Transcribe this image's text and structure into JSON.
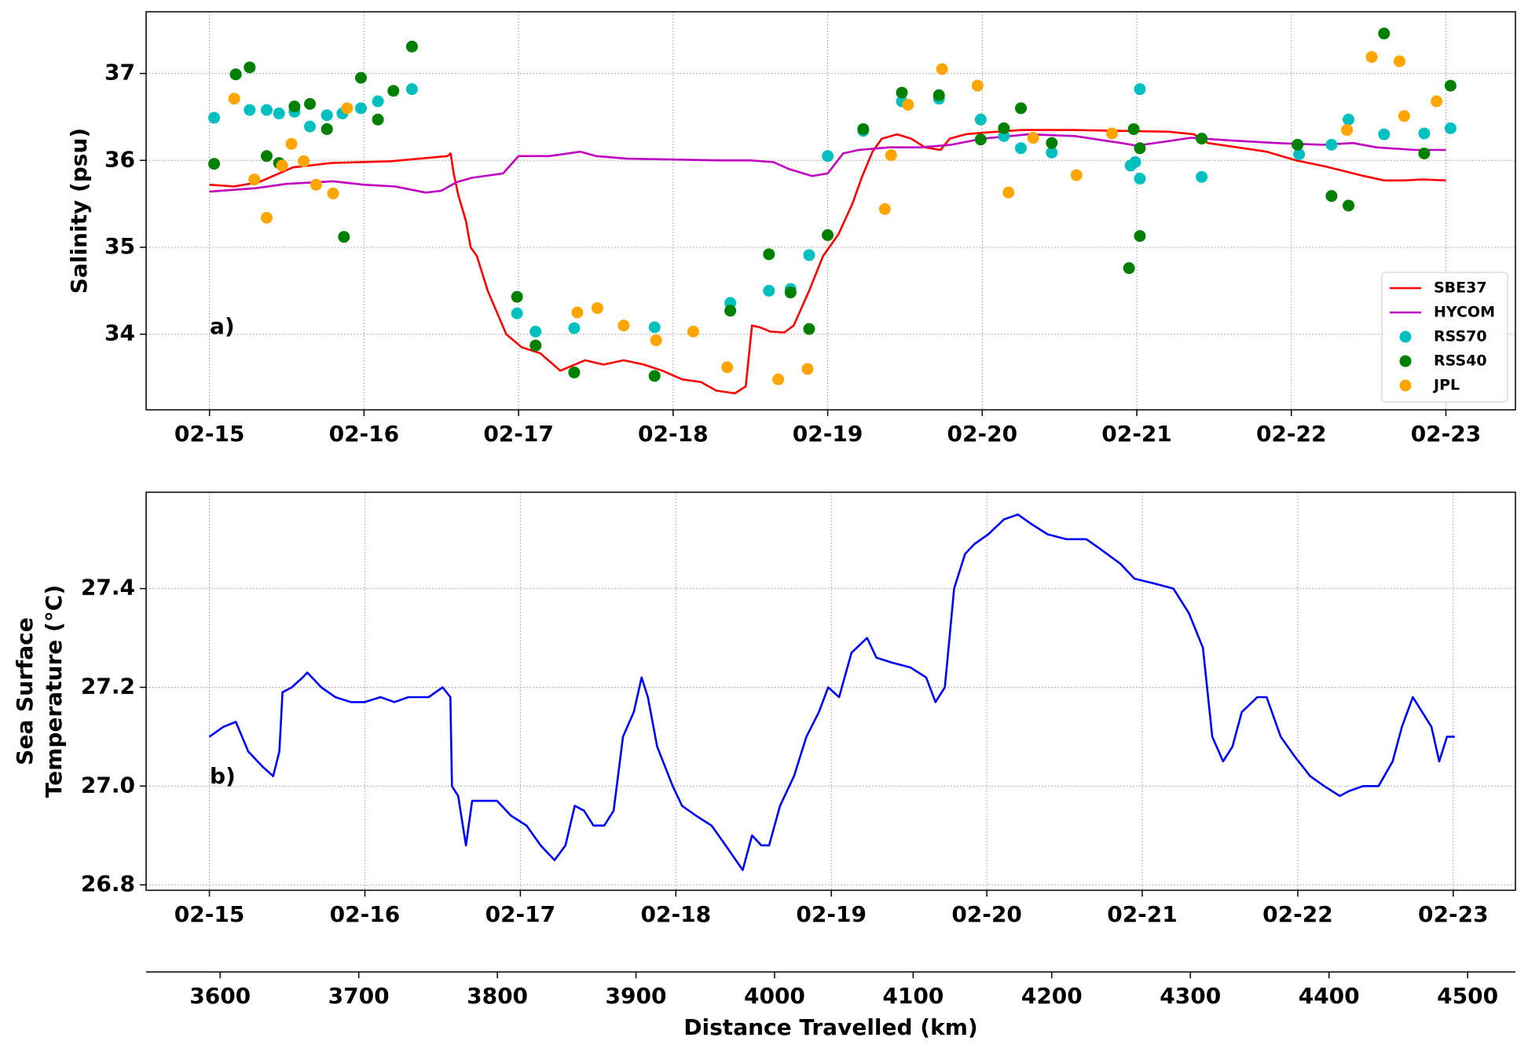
{
  "chart_data": [
    {
      "type": "line",
      "ylabel": "Salinity (psu)",
      "annotation": "a)",
      "xlim": [
        -0.41,
        8.45
      ],
      "xticks": [
        {
          "value": 0,
          "label": "02-15"
        },
        {
          "value": 1,
          "label": "02-16"
        },
        {
          "value": 2,
          "label": "02-17"
        },
        {
          "value": 3,
          "label": "02-18"
        },
        {
          "value": 4,
          "label": "02-19"
        },
        {
          "value": 5,
          "label": "02-20"
        },
        {
          "value": 6,
          "label": "02-21"
        },
        {
          "value": 7,
          "label": "02-22"
        },
        {
          "value": 8,
          "label": "02-23"
        }
      ],
      "ylim": [
        33.13,
        37.71
      ],
      "yticks": [
        34,
        35,
        36,
        37
      ],
      "grid": true,
      "legend": "lower right",
      "series": [
        {
          "name": "SBE37",
          "color": "#ff0000",
          "type": "line",
          "x": [
            0,
            0.16,
            0.32,
            0.54,
            0.79,
            1.17,
            1.36,
            1.54,
            1.56,
            1.58,
            1.61,
            1.66,
            1.69,
            1.73,
            1.8,
            1.86,
            1.92,
            2.02,
            2.14,
            2.27,
            2.43,
            2.55,
            2.68,
            2.81,
            2.93,
            3.06,
            3.18,
            3.28,
            3.4,
            3.47,
            3.51,
            3.56,
            3.63,
            3.72,
            3.78,
            3.88,
            3.97,
            4.07,
            4.16,
            4.22,
            4.29,
            4.35,
            4.45,
            4.54,
            4.63,
            4.73,
            4.79,
            4.89,
            5.01,
            5.26,
            5.58,
            5.9,
            6.21,
            6.37,
            6.46,
            6.65,
            6.84,
            7.03,
            7.22,
            7.47,
            7.6,
            7.73,
            7.85,
            8.0
          ],
          "values": [
            35.72,
            35.7,
            35.75,
            35.92,
            35.97,
            35.99,
            36.02,
            36.05,
            36.08,
            35.85,
            35.6,
            35.3,
            35.0,
            34.9,
            34.5,
            34.25,
            34.0,
            33.85,
            33.78,
            33.58,
            33.7,
            33.65,
            33.7,
            33.65,
            33.58,
            33.48,
            33.45,
            33.35,
            33.32,
            33.4,
            34.1,
            34.08,
            34.03,
            34.02,
            34.1,
            34.5,
            34.9,
            35.15,
            35.5,
            35.8,
            36.1,
            36.25,
            36.3,
            36.25,
            36.15,
            36.12,
            36.25,
            36.3,
            36.32,
            36.35,
            36.35,
            36.34,
            36.33,
            36.3,
            36.2,
            36.15,
            36.1,
            36.0,
            35.93,
            35.82,
            35.77,
            35.77,
            35.78,
            35.77
          ]
        },
        {
          "name": "HYCOM",
          "color": "#bf00bf",
          "type": "line",
          "x": [
            0,
            0.3,
            0.5,
            0.8,
            1.0,
            1.2,
            1.4,
            1.5,
            1.6,
            1.7,
            1.9,
            2.0,
            2.2,
            2.4,
            2.5,
            2.7,
            3.0,
            3.3,
            3.5,
            3.65,
            3.75,
            3.9,
            4.0,
            4.1,
            4.2,
            4.4,
            4.6,
            4.8,
            5.0,
            5.3,
            5.6,
            5.9,
            6.0,
            6.2,
            6.35,
            6.6,
            6.9,
            7.2,
            7.4,
            7.55,
            7.8,
            8.0
          ],
          "values": [
            35.64,
            35.68,
            35.73,
            35.76,
            35.72,
            35.7,
            35.63,
            35.65,
            35.75,
            35.8,
            35.85,
            36.05,
            36.05,
            36.1,
            36.05,
            36.02,
            36.01,
            36.0,
            36.0,
            35.98,
            35.9,
            35.82,
            35.85,
            36.08,
            36.12,
            36.15,
            36.15,
            36.18,
            36.25,
            36.3,
            36.28,
            36.2,
            36.17,
            36.22,
            36.26,
            36.23,
            36.2,
            36.18,
            36.2,
            36.15,
            36.12,
            36.12
          ]
        },
        {
          "name": "RSS70",
          "color": "#00bfbf",
          "type": "scatter",
          "x": [
            0.03,
            0.17,
            0.26,
            0.37,
            0.45,
            0.55,
            0.65,
            0.76,
            0.86,
            0.98,
            1.09,
            1.31,
            1.99,
            2.11,
            2.36,
            2.88,
            3.37,
            3.62,
            3.76,
            3.88,
            4.0,
            4.23,
            4.48,
            4.72,
            4.99,
            5.14,
            5.25,
            5.45,
            5.96,
            5.99,
            6.02,
            6.02,
            6.42,
            7.05,
            7.26,
            7.37,
            7.6,
            7.86,
            8.03
          ],
          "values": [
            36.49,
            36.99,
            36.58,
            36.58,
            36.54,
            36.56,
            36.39,
            36.52,
            36.54,
            36.6,
            36.68,
            36.82,
            34.24,
            34.03,
            34.07,
            34.08,
            34.36,
            34.5,
            34.52,
            34.91,
            36.05,
            36.34,
            36.68,
            36.71,
            36.47,
            36.28,
            36.14,
            36.09,
            35.94,
            35.98,
            36.82,
            35.79,
            35.81,
            36.07,
            36.18,
            36.47,
            36.3,
            36.31,
            36.37
          ]
        },
        {
          "name": "RSS40",
          "color": "#008000",
          "type": "scatter",
          "x": [
            0.03,
            0.17,
            0.26,
            0.37,
            0.45,
            0.55,
            0.65,
            0.76,
            0.87,
            0.98,
            1.09,
            1.19,
            1.31,
            1.99,
            2.11,
            2.36,
            2.88,
            3.37,
            3.62,
            3.76,
            3.88,
            4.0,
            4.23,
            4.48,
            4.72,
            4.99,
            5.14,
            5.25,
            5.45,
            5.95,
            5.98,
            6.02,
            6.02,
            6.42,
            7.04,
            7.26,
            7.37,
            7.6,
            7.86,
            8.03
          ],
          "values": [
            35.96,
            36.99,
            37.07,
            36.05,
            35.97,
            36.62,
            36.65,
            36.36,
            35.12,
            36.95,
            36.47,
            36.8,
            37.31,
            34.43,
            33.87,
            33.56,
            33.52,
            34.27,
            34.92,
            34.48,
            34.06,
            35.14,
            36.36,
            36.78,
            36.75,
            36.24,
            36.37,
            36.6,
            36.2,
            34.76,
            36.36,
            35.13,
            36.14,
            36.25,
            36.18,
            35.59,
            35.48,
            37.46,
            36.08,
            36.86
          ]
        },
        {
          "name": "JPL",
          "color": "#ffa500",
          "type": "scatter",
          "x": [
            0.16,
            0.29,
            0.37,
            0.47,
            0.53,
            0.61,
            0.69,
            0.8,
            0.89,
            2.38,
            2.51,
            2.68,
            2.89,
            3.13,
            3.35,
            3.68,
            3.87,
            4.37,
            4.41,
            4.52,
            4.74,
            4.97,
            5.17,
            5.33,
            5.61,
            5.84,
            7.36,
            7.52,
            7.7,
            7.73,
            7.94
          ],
          "values": [
            36.71,
            35.78,
            35.34,
            35.94,
            36.19,
            35.99,
            35.72,
            35.62,
            36.6,
            34.25,
            34.3,
            34.1,
            33.93,
            34.03,
            33.62,
            33.48,
            33.6,
            35.44,
            36.06,
            36.64,
            37.05,
            36.86,
            35.63,
            36.26,
            35.83,
            36.31,
            36.35,
            37.19,
            37.14,
            36.51,
            36.68
          ]
        }
      ]
    },
    {
      "type": "line",
      "ylabel": [
        "Sea Surface",
        "Temperature (°C)"
      ],
      "annotation": "b)",
      "xlim": [
        -0.407,
        8.4
      ],
      "xticks": [
        {
          "value": 0,
          "label": "02-15"
        },
        {
          "value": 1,
          "label": "02-16"
        },
        {
          "value": 2,
          "label": "02-17"
        },
        {
          "value": 3,
          "label": "02-18"
        },
        {
          "value": 4,
          "label": "02-19"
        },
        {
          "value": 5,
          "label": "02-20"
        },
        {
          "value": 6,
          "label": "02-21"
        },
        {
          "value": 7,
          "label": "02-22"
        },
        {
          "value": 8,
          "label": "02-23"
        }
      ],
      "ylim": [
        26.789,
        27.595
      ],
      "yticks": [
        {
          "value": 26.8,
          "label": "26.8"
        },
        {
          "value": 27.0,
          "label": "27.0"
        },
        {
          "value": 27.2,
          "label": "27.2"
        },
        {
          "value": 27.4,
          "label": "27.4"
        }
      ],
      "grid": true,
      "x2lim": [
        3546.6,
        4534.5
      ],
      "x2ticks": [
        3600,
        3700,
        3800,
        3900,
        4000,
        4100,
        4200,
        4300,
        4400,
        4500
      ],
      "x2label": "Distance Travelled (km)",
      "series": [
        {
          "color": "#0000ff",
          "type": "line",
          "x": [
            0,
            0.09,
            0.17,
            0.25,
            0.34,
            0.41,
            0.45,
            0.47,
            0.53,
            0.6,
            0.63,
            0.72,
            0.81,
            0.91,
            1.0,
            1.1,
            1.19,
            1.28,
            1.41,
            1.5,
            1.55,
            1.56,
            1.6,
            1.65,
            1.69,
            1.75,
            1.85,
            1.94,
            2.04,
            2.13,
            2.22,
            2.29,
            2.35,
            2.41,
            2.47,
            2.54,
            2.6,
            2.66,
            2.73,
            2.78,
            2.82,
            2.88,
            2.98,
            3.04,
            3.13,
            3.23,
            3.32,
            3.43,
            3.49,
            3.55,
            3.6,
            3.67,
            3.76,
            3.84,
            3.92,
            3.98,
            4.05,
            4.13,
            4.23,
            4.29,
            4.39,
            4.51,
            4.61,
            4.67,
            4.73,
            4.79,
            4.86,
            4.92,
            5.01,
            5.11,
            5.2,
            5.29,
            5.39,
            5.51,
            5.64,
            5.73,
            5.86,
            5.95,
            6.08,
            6.2,
            6.3,
            6.39,
            6.45,
            6.52,
            6.58,
            6.64,
            6.74,
            6.8,
            6.89,
            6.98,
            7.08,
            7.17,
            7.27,
            7.33,
            7.42,
            7.52,
            7.61,
            7.67,
            7.74,
            7.8,
            7.86,
            7.91,
            7.96,
            8.01
          ],
          "values": [
            27.1,
            27.12,
            27.13,
            27.07,
            27.04,
            27.02,
            27.07,
            27.19,
            27.2,
            27.22,
            27.23,
            27.2,
            27.18,
            27.17,
            27.17,
            27.18,
            27.17,
            27.18,
            27.18,
            27.2,
            27.18,
            27.0,
            26.98,
            26.88,
            26.97,
            26.97,
            26.97,
            26.94,
            26.92,
            26.88,
            26.85,
            26.88,
            26.96,
            26.95,
            26.92,
            26.92,
            26.95,
            27.1,
            27.15,
            27.22,
            27.18,
            27.08,
            27.0,
            26.96,
            26.94,
            26.92,
            26.88,
            26.83,
            26.9,
            26.88,
            26.88,
            26.96,
            27.02,
            27.1,
            27.15,
            27.2,
            27.18,
            27.27,
            27.3,
            27.26,
            27.25,
            27.24,
            27.22,
            27.17,
            27.2,
            27.4,
            27.47,
            27.49,
            27.51,
            27.54,
            27.55,
            27.53,
            27.51,
            27.5,
            27.5,
            27.48,
            27.45,
            27.42,
            27.41,
            27.4,
            27.35,
            27.28,
            27.1,
            27.05,
            27.08,
            27.15,
            27.18,
            27.18,
            27.1,
            27.06,
            27.02,
            27.0,
            26.98,
            26.99,
            27.0,
            27.0,
            27.05,
            27.12,
            27.18,
            27.15,
            27.12,
            27.05,
            27.1,
            27.1
          ]
        }
      ]
    }
  ]
}
